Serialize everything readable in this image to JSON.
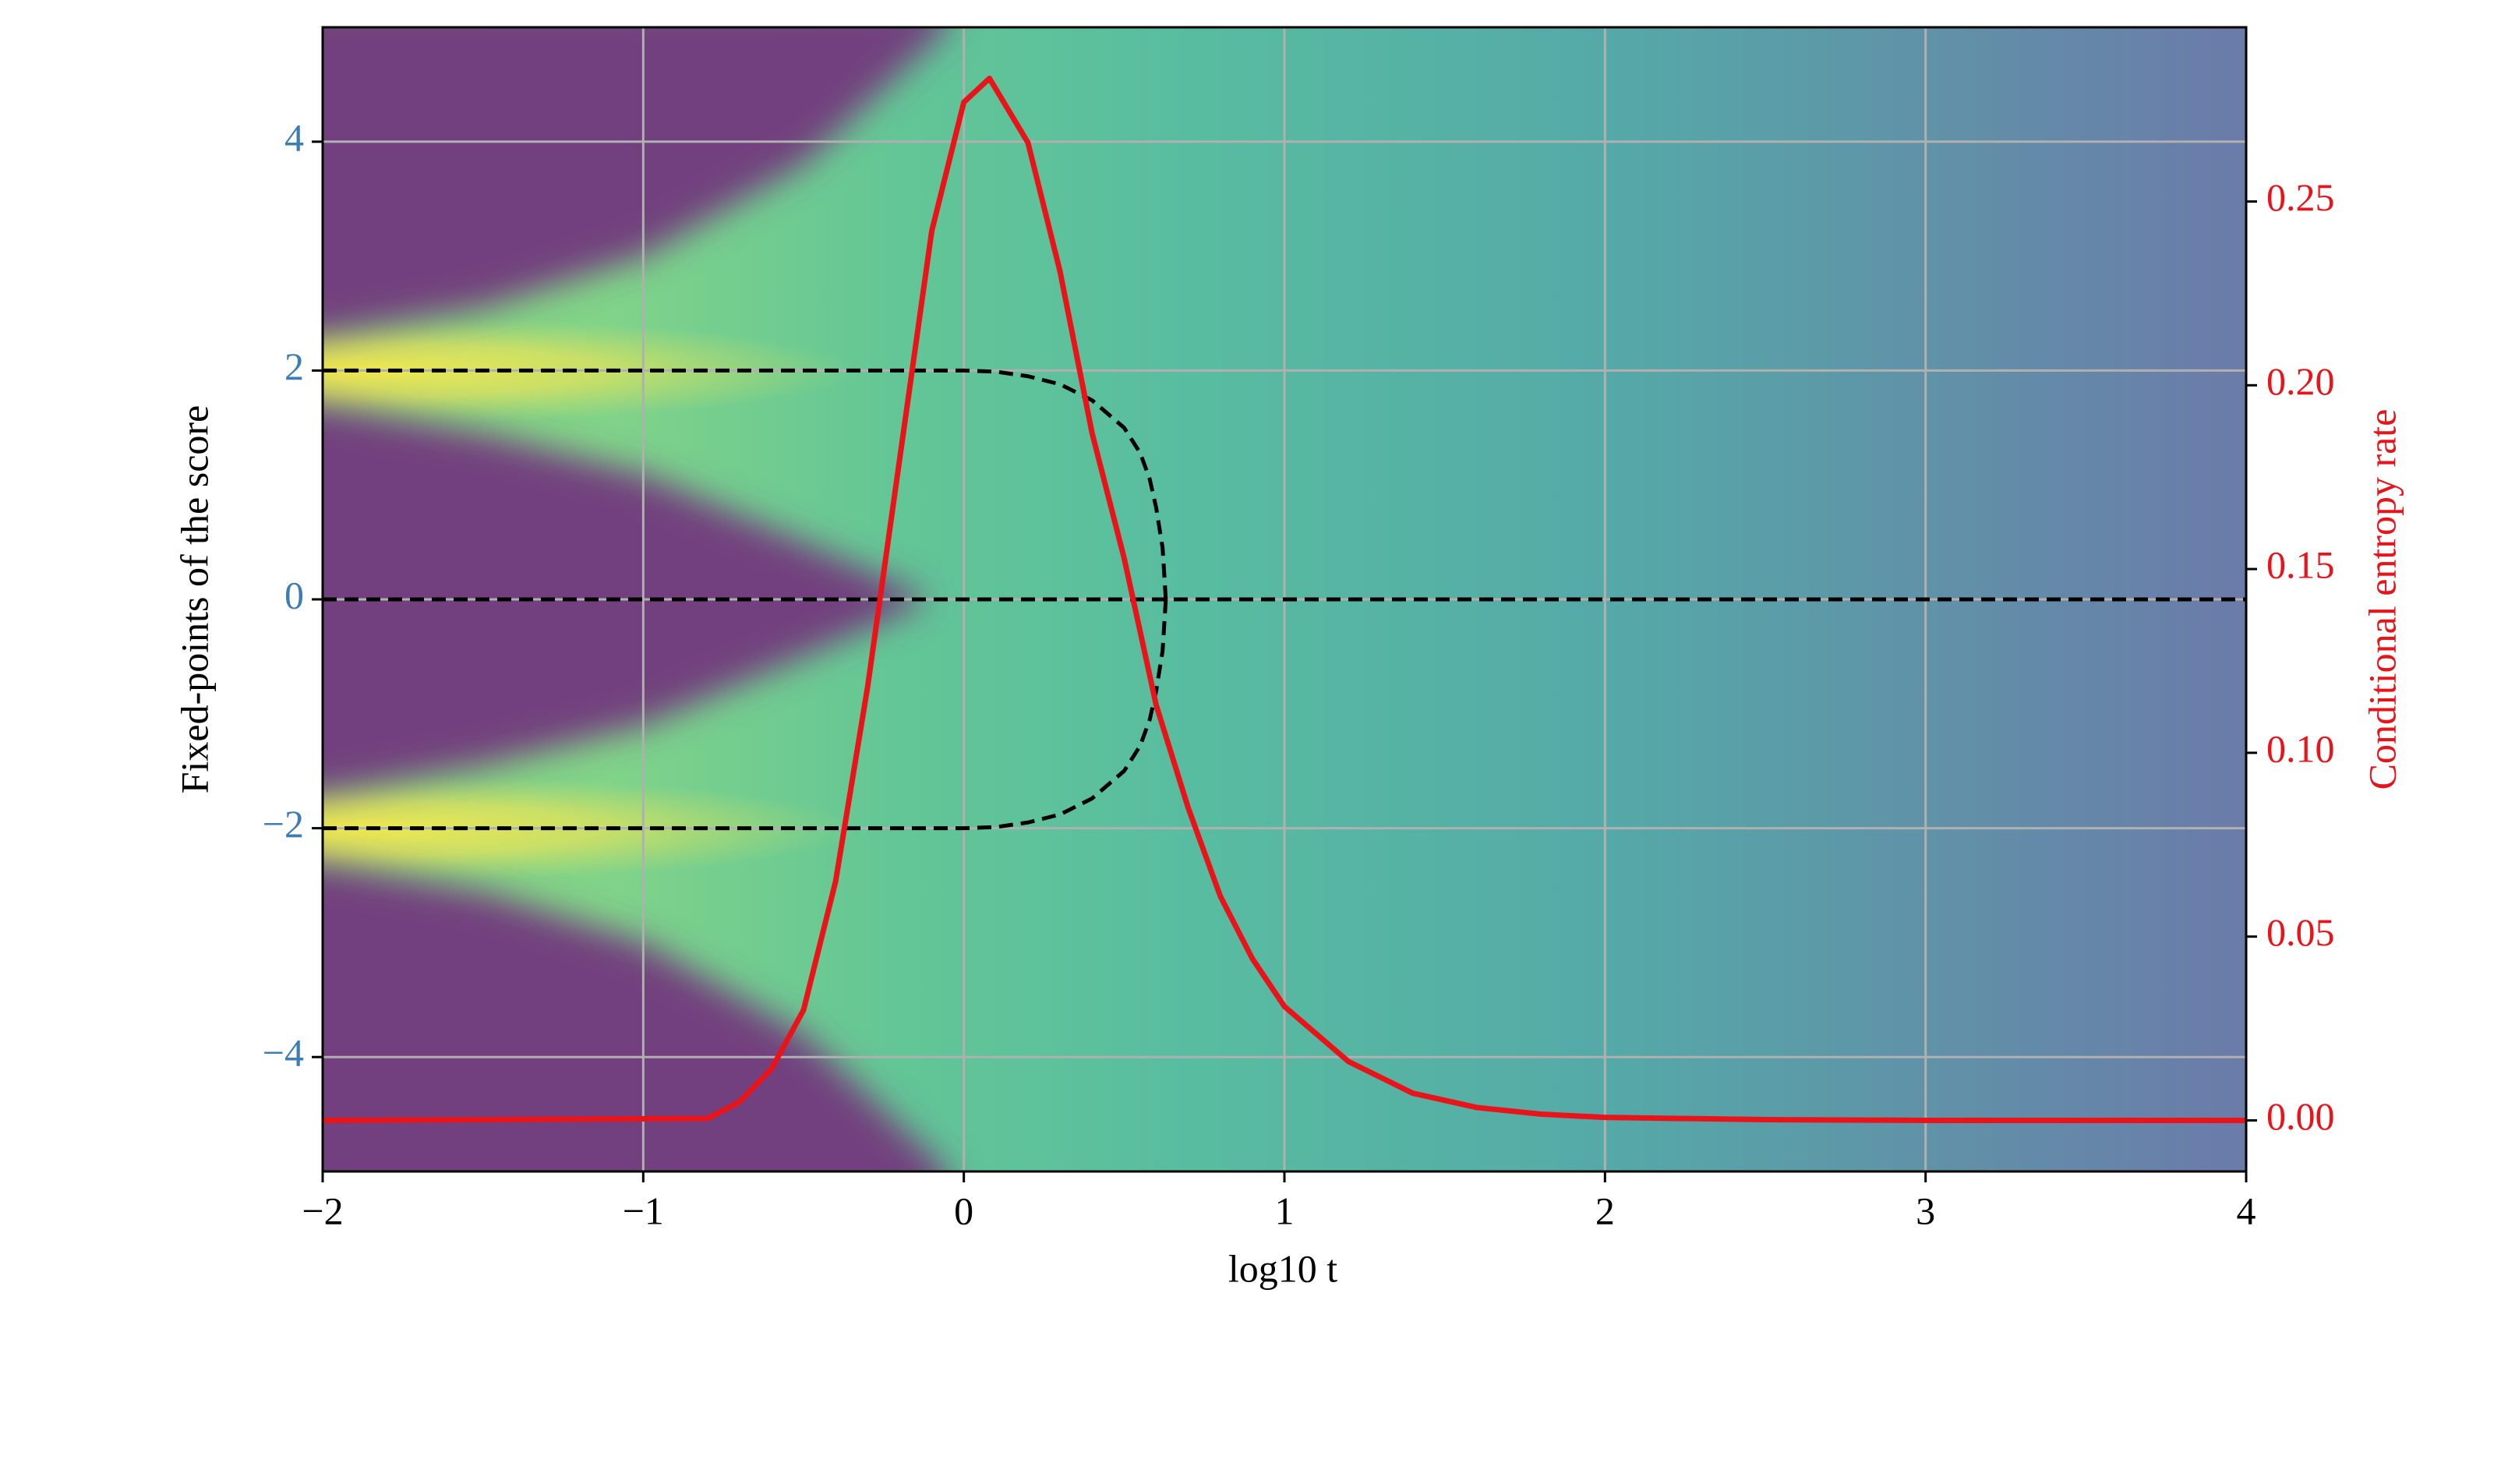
{
  "chart_data": {
    "type": "line",
    "xlabel": "log10 t",
    "ylabel": "Fixed-points of the score",
    "y2label": "Conditional entropy rate",
    "xlim": [
      -2,
      4
    ],
    "ylim": [
      -5,
      5
    ],
    "y2lim": [
      -0.0139,
      0.2974
    ],
    "xticks": [
      {
        "value": -2,
        "label": "−2"
      },
      {
        "value": -1,
        "label": "−1"
      },
      0,
      1,
      2,
      3,
      4
    ],
    "yticks": [
      {
        "value": -4,
        "label": "−4"
      },
      {
        "value": -2,
        "label": "−2"
      },
      0,
      2,
      4
    ],
    "y2ticks": [
      {
        "value": 0,
        "label": "0.00"
      },
      0.05,
      {
        "value": 0.1,
        "label": "0.10"
      },
      0.15,
      {
        "value": 0.2,
        "label": "0.20"
      },
      0.25
    ],
    "grid": true,
    "ytick_color": "#3b7db4",
    "y2_color": "#e8141a",
    "series": [
      {
        "color": "#000000",
        "dashed": true,
        "x": [
          -2,
          0,
          0.1,
          0.2,
          0.3,
          0.4,
          0.5,
          0.55,
          0.58,
          0.6,
          0.62,
          0.63
        ],
        "values": [
          2,
          2,
          1.99,
          1.95,
          1.88,
          1.74,
          1.5,
          1.28,
          1.05,
          0.8,
          0.45,
          0
        ]
      },
      {
        "color": "#000000",
        "dashed": true,
        "x": [
          -2,
          0,
          0.1,
          0.2,
          0.3,
          0.4,
          0.5,
          0.55,
          0.58,
          0.6,
          0.62,
          0.63
        ],
        "values": [
          -2,
          -2,
          -1.99,
          -1.95,
          -1.88,
          -1.74,
          -1.5,
          -1.28,
          -1.05,
          -0.8,
          -0.45,
          0
        ]
      },
      {
        "color": "#000000",
        "dashed": true,
        "x": [
          -2,
          4
        ],
        "values": [
          0,
          0
        ]
      },
      {
        "color": "#e8141a",
        "dashed": false,
        "axis": "y2",
        "x": [
          -2,
          -0.8,
          -0.7,
          -0.6,
          -0.5,
          -0.4,
          -0.3,
          -0.2,
          -0.1,
          0,
          0.08,
          0.2,
          0.3,
          0.4,
          0.5,
          0.6,
          0.7,
          0.8,
          0.9,
          1.0,
          1.2,
          1.4,
          1.6,
          1.8,
          2.0,
          2.5,
          3,
          4
        ],
        "values": [
          0,
          0.0005,
          0.005,
          0.014,
          0.03,
          0.065,
          0.118,
          0.18,
          0.242,
          0.277,
          0.2835,
          0.266,
          0.231,
          0.187,
          0.153,
          0.113,
          0.085,
          0.061,
          0.044,
          0.031,
          0.016,
          0.0074,
          0.0035,
          0.0017,
          0.0008,
          0.0002,
          0,
          0
        ]
      }
    ]
  }
}
